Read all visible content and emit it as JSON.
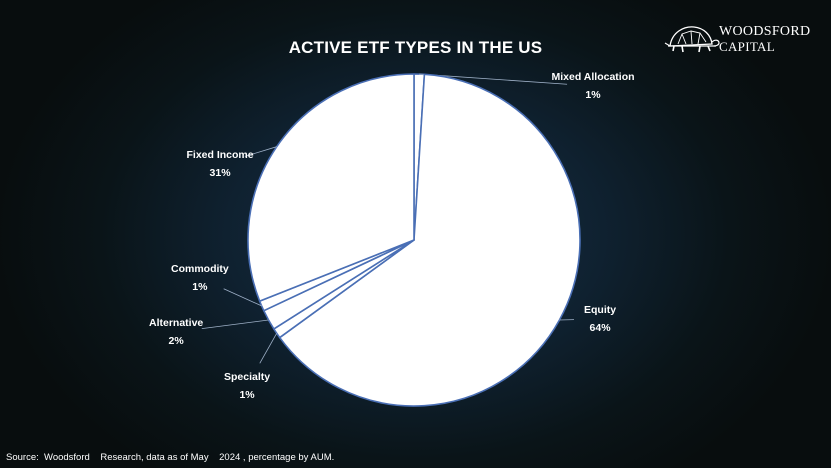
{
  "title": "ACTIVE ETF TYPES IN THE US",
  "logo": {
    "line1": "WOODSFORD",
    "line2": "CAPITAL",
    "icon": "tortoise-icon"
  },
  "source": "Source:  Woodsford    Research, data as of May    2024 , percentage by AUM.",
  "colors": {
    "slice_fill": "#ffffff",
    "slice_stroke": "#4a6fb5",
    "leader_line": "#9fb1c8",
    "text": "#ffffff"
  },
  "chart_data": {
    "type": "pie",
    "title": "ACTIVE ETF TYPES IN THE US",
    "slices": [
      {
        "label": "Mixed Allocation",
        "value": 1,
        "value_label": "1%"
      },
      {
        "label": "Equity",
        "value": 64,
        "value_label": "64%"
      },
      {
        "label": "Specialty",
        "value": 1,
        "value_label": "1%"
      },
      {
        "label": "Alternative",
        "value": 2,
        "value_label": "2%"
      },
      {
        "label": "Commodity",
        "value": 1,
        "value_label": "1%"
      },
      {
        "label": "Fixed Income",
        "value": 31,
        "value_label": "31%"
      }
    ],
    "start_angle": "12 o'clock",
    "direction": "clockwise",
    "legend": "none",
    "data_labels": "outside with leader lines"
  }
}
